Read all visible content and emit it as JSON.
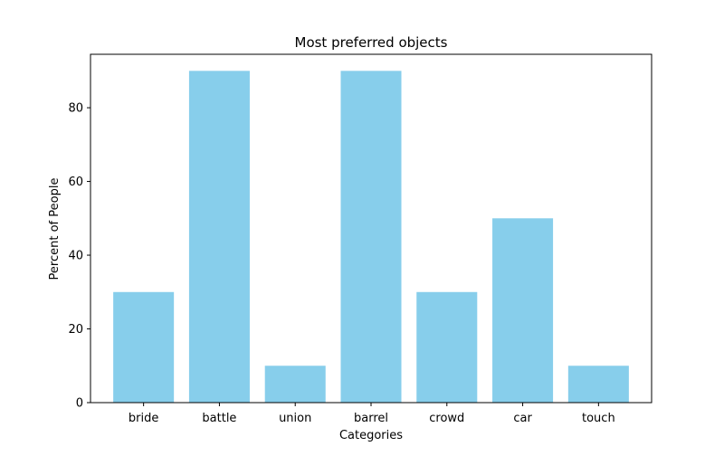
{
  "chart_data": {
    "type": "bar",
    "title": "Most preferred objects",
    "xlabel": "Categories",
    "ylabel": "Percent of People",
    "categories": [
      "bride",
      "battle",
      "union",
      "barrel",
      "crowd",
      "car",
      "touch"
    ],
    "values": [
      30,
      90,
      10,
      90,
      30,
      50,
      10
    ],
    "ylim": [
      0,
      94.5
    ],
    "yticks": [
      0,
      20,
      40,
      60,
      80
    ],
    "bar_color": "#87CEEB",
    "grid": false,
    "legend": "none"
  }
}
